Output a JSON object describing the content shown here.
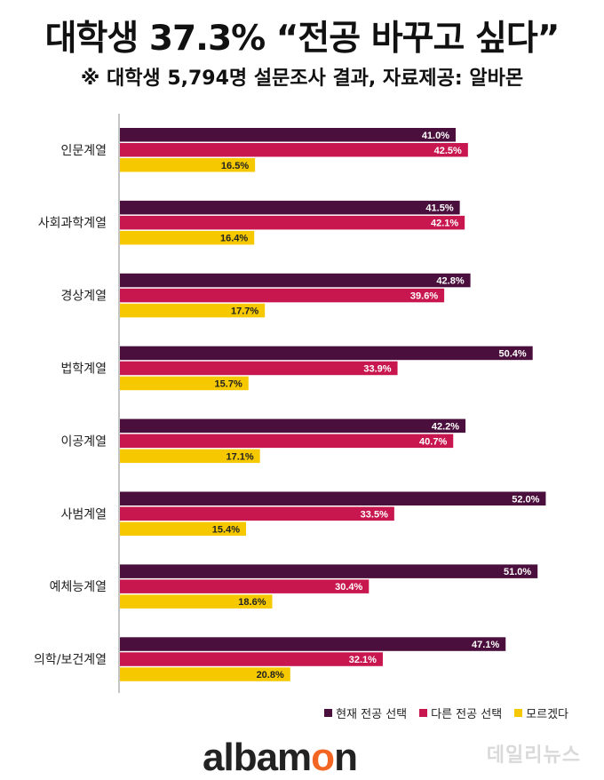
{
  "title": "대학생 37.3% “전공 바꾸고 싶다”",
  "subtitle": "※ 대학생 5,794명 설문조사 결과, 자료제공: 알바몬",
  "brand": {
    "logo_prefix": "albam",
    "logo_accent": "o",
    "logo_suffix": "n",
    "watermark": "데일리뉴스"
  },
  "colors": {
    "current": "#4a0f3c",
    "other": "#c8174f",
    "unknown": "#f5c800",
    "logo_accent": "#f26522"
  },
  "chart_data": {
    "type": "bar",
    "orientation": "horizontal",
    "categories": [
      "인문계열",
      "사회과학계열",
      "경상계열",
      "법학계열",
      "이공계열",
      "사범계열",
      "예체능계열",
      "의학/보건계열"
    ],
    "series": [
      {
        "name": "현재 전공 선택",
        "values": [
          41.0,
          41.5,
          42.8,
          50.4,
          42.2,
          52.0,
          51.0,
          47.1
        ],
        "labels": [
          "41.0%",
          "41.5%",
          "42.8%",
          "50.4%",
          "42.2%",
          "52.0%",
          "51.0%",
          "47.1%"
        ]
      },
      {
        "name": "다른 전공 선택",
        "values": [
          42.5,
          42.1,
          39.6,
          33.9,
          40.7,
          33.5,
          30.4,
          32.1
        ],
        "labels": [
          "42.5%",
          "42.1%",
          "39.6%",
          "33.9%",
          "40.7%",
          "33.5%",
          "30.4%",
          "32.1%"
        ]
      },
      {
        "name": "모르겠다",
        "values": [
          16.5,
          16.4,
          17.7,
          15.7,
          17.1,
          15.4,
          18.6,
          20.8
        ],
        "labels": [
          "16.5%",
          "16.4%",
          "17.7%",
          "15.7%",
          "17.1%",
          "15.4%",
          "18.6%",
          "20.8%"
        ]
      }
    ],
    "xlim": [
      0,
      55
    ],
    "legend_position": "bottom-right",
    "grid": false
  }
}
